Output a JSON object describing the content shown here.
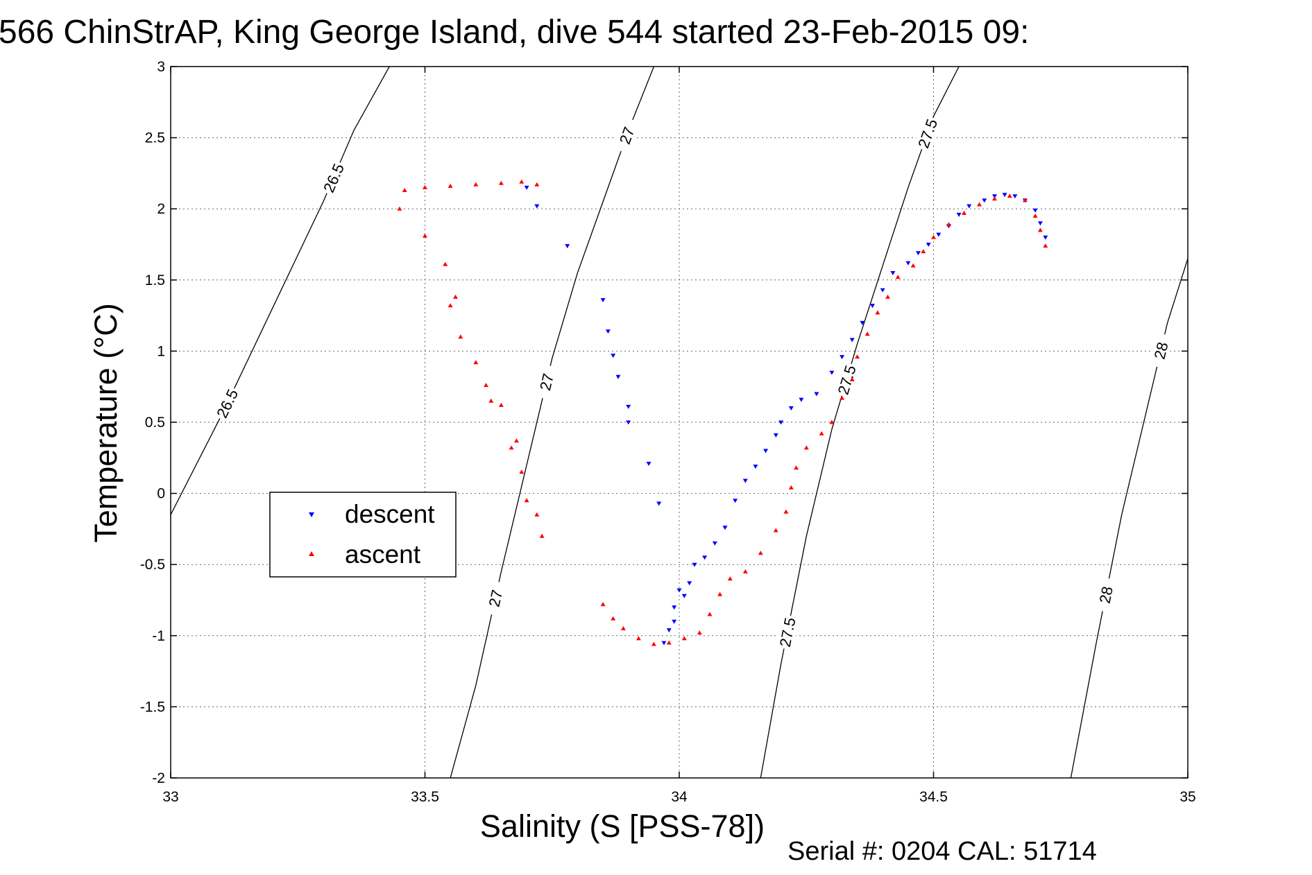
{
  "chart_data": {
    "type": "scatter",
    "title": "566 ChinStrAP, King George Island, dive 544 started 23-Feb-2015 09:",
    "xlabel": "Salinity (S [PSS-78])",
    "ylabel": "Temperature (°C)",
    "xlim": [
      33,
      35
    ],
    "ylim": [
      -2,
      3
    ],
    "xticks": [
      "33",
      "33.5",
      "34",
      "34.5",
      "35"
    ],
    "yticks": [
      "-2",
      "-1.5",
      "-1",
      "-0.5",
      "0",
      "0.5",
      "1",
      "1.5",
      "2",
      "2.5",
      "3"
    ],
    "grid": true,
    "legend_position": "left-middle",
    "footer": "Serial #: 0204  CAL: 51714",
    "density_contours": [
      {
        "level": "26.5",
        "label": "26.5",
        "points": [
          [
            33.0,
            -0.15
          ],
          [
            33.1,
            0.55
          ],
          [
            33.2,
            1.3
          ],
          [
            33.3,
            2.05
          ],
          [
            33.36,
            2.55
          ],
          [
            33.43,
            3.0
          ]
        ]
      },
      {
        "level": "27",
        "label": "27",
        "points": [
          [
            33.55,
            -2.0
          ],
          [
            33.6,
            -1.35
          ],
          [
            33.65,
            -0.55
          ],
          [
            33.7,
            0.2
          ],
          [
            33.75,
            0.95
          ],
          [
            33.8,
            1.55
          ],
          [
            33.85,
            2.05
          ],
          [
            33.9,
            2.55
          ],
          [
            33.95,
            3.0
          ]
        ]
      },
      {
        "level": "27.5",
        "label": "27.5",
        "points": [
          [
            34.16,
            -2.0
          ],
          [
            34.2,
            -1.2
          ],
          [
            34.25,
            -0.3
          ],
          [
            34.3,
            0.45
          ],
          [
            34.35,
            1.05
          ],
          [
            34.4,
            1.6
          ],
          [
            34.45,
            2.15
          ],
          [
            34.5,
            2.65
          ],
          [
            34.55,
            3.0
          ]
        ]
      },
      {
        "level": "28",
        "label": "28",
        "points": [
          [
            34.77,
            -2.0
          ],
          [
            34.82,
            -1.05
          ],
          [
            34.87,
            -0.15
          ],
          [
            34.92,
            0.6
          ],
          [
            34.96,
            1.2
          ],
          [
            35.0,
            1.65
          ]
        ]
      }
    ],
    "series": [
      {
        "name": "descent",
        "color": "#0000ff",
        "marker": "triangle-down",
        "points": [
          [
            33.7,
            2.15
          ],
          [
            33.72,
            2.02
          ],
          [
            33.78,
            1.74
          ],
          [
            33.85,
            1.36
          ],
          [
            33.86,
            1.14
          ],
          [
            33.87,
            0.97
          ],
          [
            33.88,
            0.82
          ],
          [
            33.9,
            0.61
          ],
          [
            33.9,
            0.5
          ],
          [
            33.94,
            0.21
          ],
          [
            33.96,
            -0.07
          ],
          [
            33.97,
            -1.05
          ],
          [
            33.98,
            -0.96
          ],
          [
            33.99,
            -0.9
          ],
          [
            33.99,
            -0.8
          ],
          [
            34.0,
            -0.68
          ],
          [
            34.01,
            -0.72
          ],
          [
            34.02,
            -0.63
          ],
          [
            34.03,
            -0.5
          ],
          [
            34.05,
            -0.45
          ],
          [
            34.07,
            -0.35
          ],
          [
            34.09,
            -0.24
          ],
          [
            34.11,
            -0.05
          ],
          [
            34.13,
            0.09
          ],
          [
            34.15,
            0.19
          ],
          [
            34.17,
            0.3
          ],
          [
            34.19,
            0.41
          ],
          [
            34.2,
            0.5
          ],
          [
            34.22,
            0.6
          ],
          [
            34.24,
            0.66
          ],
          [
            34.27,
            0.7
          ],
          [
            34.3,
            0.85
          ],
          [
            34.32,
            0.96
          ],
          [
            34.34,
            1.08
          ],
          [
            34.36,
            1.2
          ],
          [
            34.38,
            1.32
          ],
          [
            34.4,
            1.43
          ],
          [
            34.42,
            1.55
          ],
          [
            34.45,
            1.62
          ],
          [
            34.47,
            1.69
          ],
          [
            34.49,
            1.75
          ],
          [
            34.51,
            1.82
          ],
          [
            34.53,
            1.88
          ],
          [
            34.55,
            1.96
          ],
          [
            34.57,
            2.02
          ],
          [
            34.6,
            2.06
          ],
          [
            34.62,
            2.09
          ],
          [
            34.64,
            2.1
          ],
          [
            34.66,
            2.09
          ],
          [
            34.68,
            2.06
          ],
          [
            34.7,
            1.99
          ],
          [
            34.71,
            1.9
          ],
          [
            34.72,
            1.8
          ]
        ]
      },
      {
        "name": "ascent",
        "color": "#ff0000",
        "marker": "triangle-up",
        "points": [
          [
            33.45,
            2.0
          ],
          [
            33.46,
            2.13
          ],
          [
            33.5,
            2.15
          ],
          [
            33.55,
            2.16
          ],
          [
            33.6,
            2.17
          ],
          [
            33.65,
            2.18
          ],
          [
            33.69,
            2.19
          ],
          [
            33.72,
            2.17
          ],
          [
            33.5,
            1.81
          ],
          [
            33.54,
            1.61
          ],
          [
            33.56,
            1.38
          ],
          [
            33.55,
            1.32
          ],
          [
            33.57,
            1.1
          ],
          [
            33.6,
            0.92
          ],
          [
            33.62,
            0.76
          ],
          [
            33.63,
            0.65
          ],
          [
            33.65,
            0.62
          ],
          [
            33.67,
            0.32
          ],
          [
            33.68,
            0.37
          ],
          [
            33.69,
            0.15
          ],
          [
            33.7,
            -0.05
          ],
          [
            33.72,
            -0.15
          ],
          [
            33.73,
            -0.3
          ],
          [
            33.85,
            -0.78
          ],
          [
            33.87,
            -0.88
          ],
          [
            33.89,
            -0.95
          ],
          [
            33.92,
            -1.02
          ],
          [
            33.95,
            -1.06
          ],
          [
            33.98,
            -1.05
          ],
          [
            34.01,
            -1.02
          ],
          [
            34.04,
            -0.98
          ],
          [
            34.06,
            -0.85
          ],
          [
            34.08,
            -0.71
          ],
          [
            34.1,
            -0.6
          ],
          [
            34.13,
            -0.55
          ],
          [
            34.16,
            -0.42
          ],
          [
            34.19,
            -0.26
          ],
          [
            34.21,
            -0.13
          ],
          [
            34.22,
            0.04
          ],
          [
            34.23,
            0.18
          ],
          [
            34.25,
            0.32
          ],
          [
            34.28,
            0.42
          ],
          [
            34.3,
            0.5
          ],
          [
            34.32,
            0.67
          ],
          [
            34.34,
            0.8
          ],
          [
            34.35,
            0.96
          ],
          [
            34.37,
            1.12
          ],
          [
            34.39,
            1.27
          ],
          [
            34.41,
            1.38
          ],
          [
            34.43,
            1.52
          ],
          [
            34.46,
            1.6
          ],
          [
            34.48,
            1.7
          ],
          [
            34.5,
            1.8
          ],
          [
            34.53,
            1.89
          ],
          [
            34.56,
            1.97
          ],
          [
            34.59,
            2.03
          ],
          [
            34.62,
            2.07
          ],
          [
            34.65,
            2.09
          ],
          [
            34.68,
            2.06
          ],
          [
            34.7,
            1.95
          ],
          [
            34.71,
            1.85
          ],
          [
            34.72,
            1.74
          ]
        ]
      }
    ]
  }
}
